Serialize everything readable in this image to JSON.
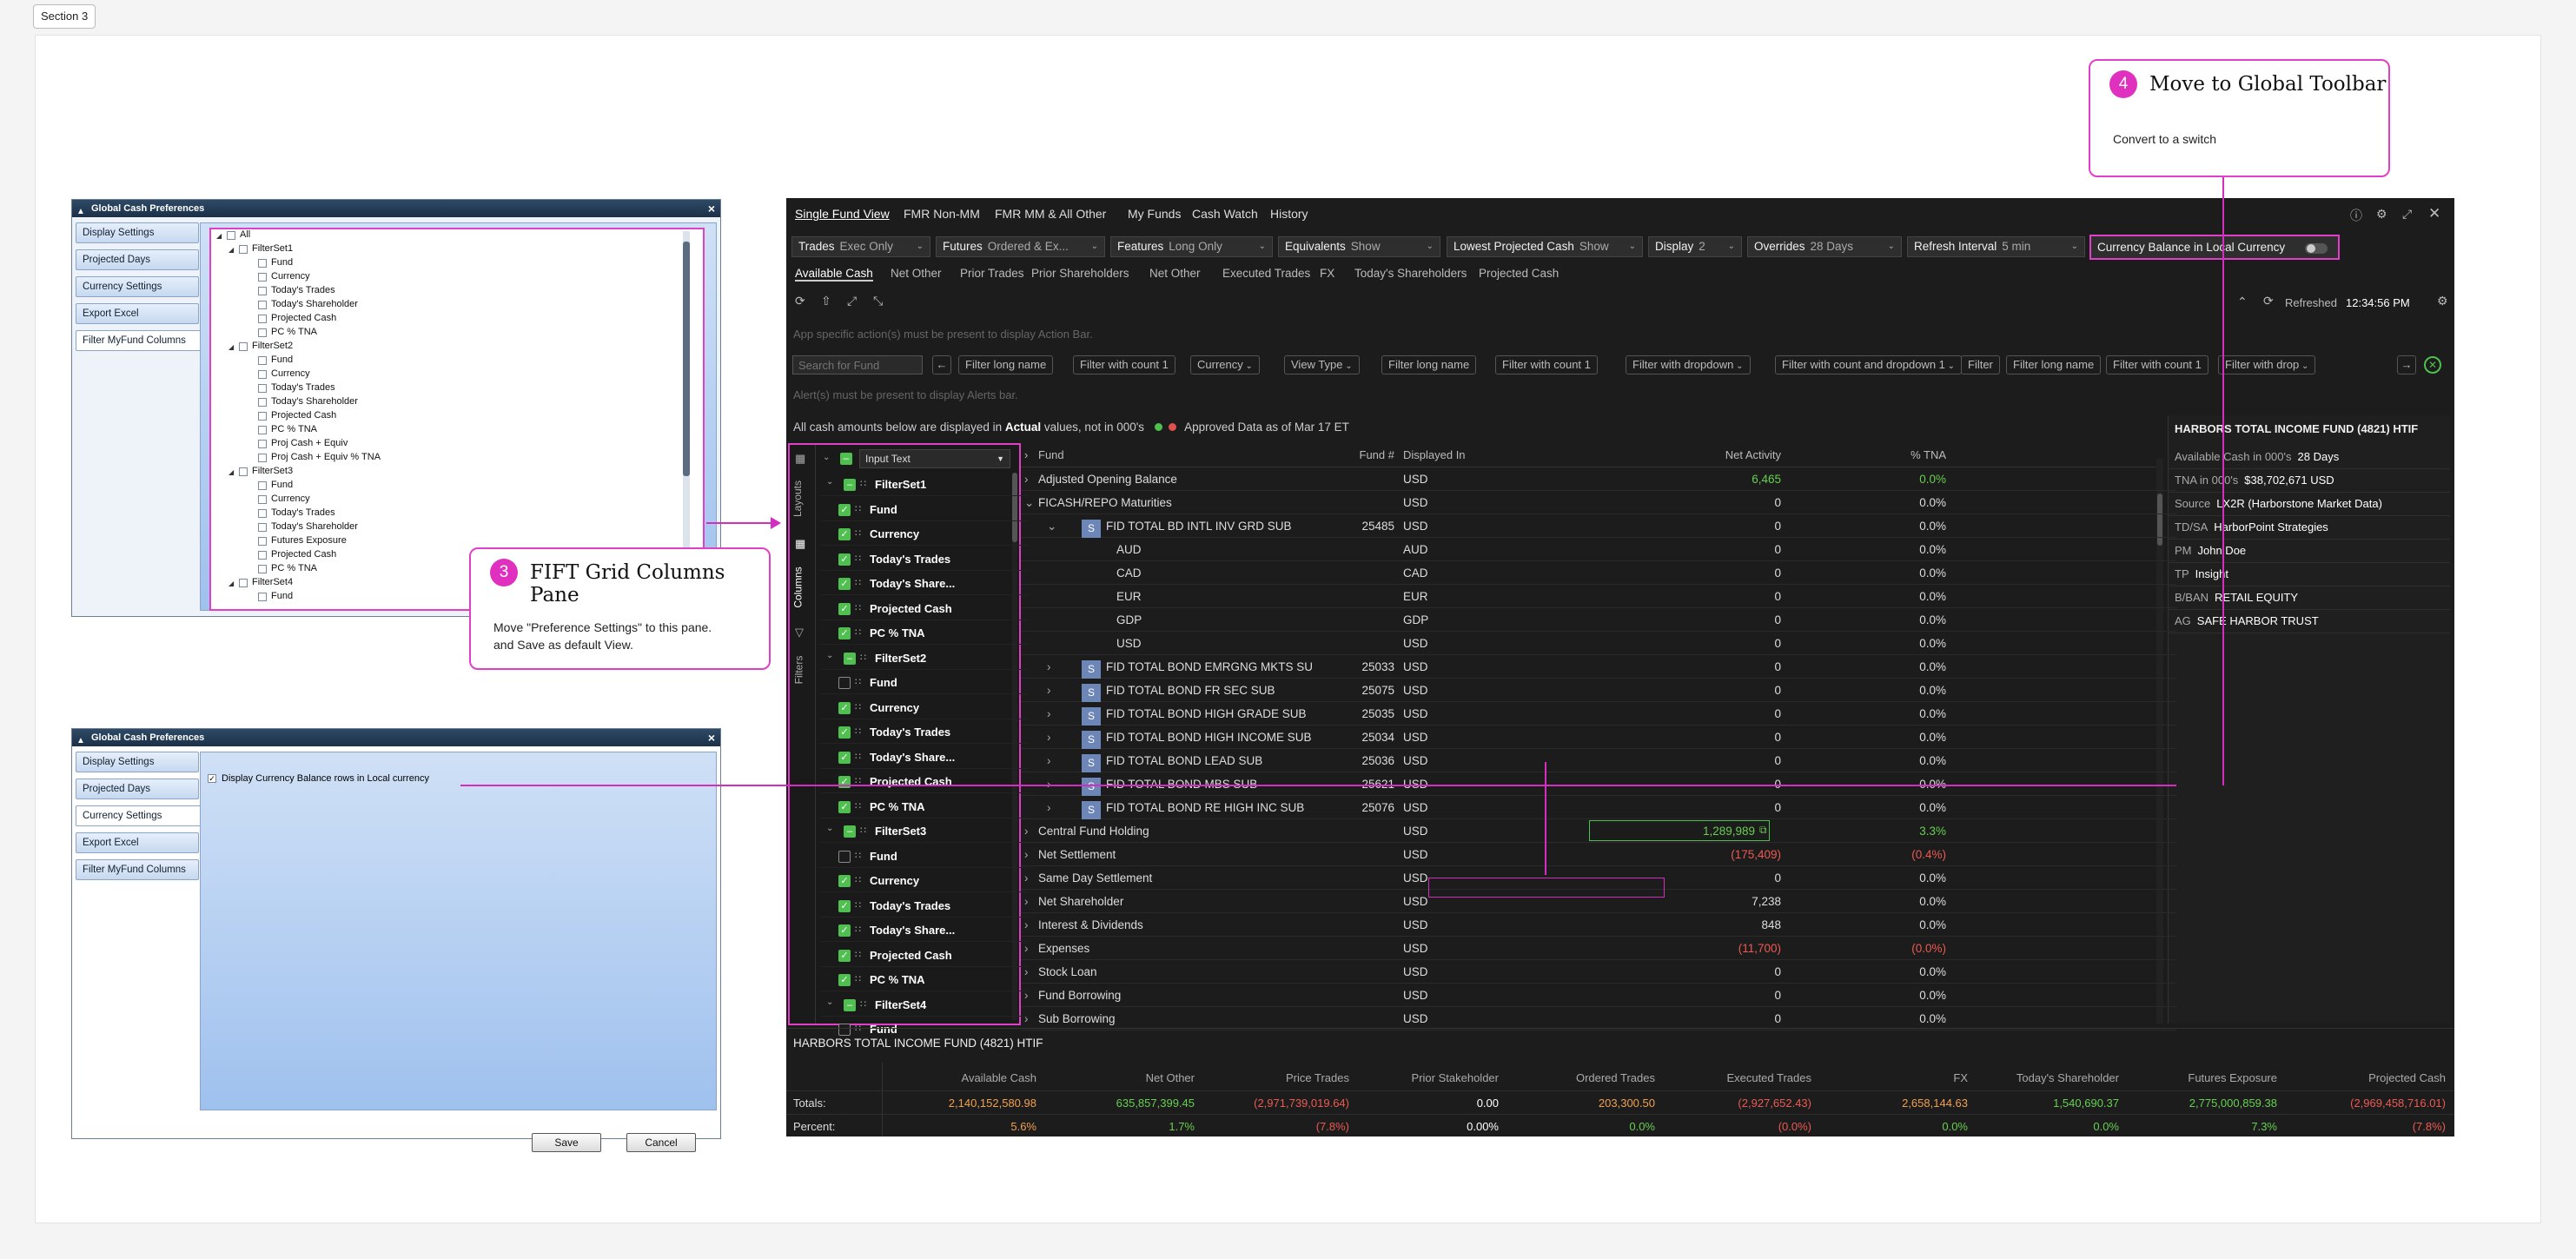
{
  "section_tag": "Section 3",
  "callouts": {
    "c3": {
      "num": "3",
      "title": "FIFT Grid Columns Pane",
      "desc": "Move \"Preference Settings\" to this pane. and Save as default View."
    },
    "c4": {
      "num": "4",
      "title": "Move to Global Toolbar",
      "desc": "Convert to a switch"
    }
  },
  "dialog1": {
    "title": "Global Cash Preferences",
    "nav": [
      "Display Settings",
      "Projected Days",
      "Currency Settings",
      "Export Excel",
      "Filter MyFund Columns"
    ],
    "tree": {
      "root": "All",
      "sets": [
        {
          "name": "FilterSet1",
          "items": [
            "Fund",
            "Currency",
            "Today's Trades",
            "Today's Shareholder",
            "Projected Cash",
            "PC % TNA"
          ]
        },
        {
          "name": "FilterSet2",
          "items": [
            "Fund",
            "Currency",
            "Today's Trades",
            "Today's Shareholder",
            "Projected Cash",
            "PC % TNA",
            "Proj Cash + Equiv",
            "Proj Cash + Equiv % TNA"
          ]
        },
        {
          "name": "FilterSet3",
          "items": [
            "Fund",
            "Currency",
            "Today's Trades",
            "Today's Shareholder",
            "Futures Exposure",
            "Projected Cash",
            "PC % TNA"
          ]
        },
        {
          "name": "FilterSet4",
          "items": [
            "Fund"
          ]
        }
      ]
    }
  },
  "dialog2": {
    "title": "Global Cash Preferences",
    "nav": [
      "Display Settings",
      "Projected Days",
      "Currency Settings",
      "Export Excel",
      "Filter MyFund Columns"
    ],
    "checkbox_label": "Display Currency Balance rows in Local currency",
    "save": "Save",
    "cancel": "Cancel"
  },
  "app": {
    "top_tabs": [
      "Single Fund View",
      "FMR Non-MM",
      "FMR MM & All Other",
      "My Funds",
      "Cash Watch",
      "History"
    ],
    "toolbar": [
      {
        "label": "Trades",
        "value": "Exec Only"
      },
      {
        "label": "Futures",
        "value": "Ordered & Ex..."
      },
      {
        "label": "Features",
        "value": "Long Only"
      },
      {
        "label": "Equivalents",
        "value": "Show"
      },
      {
        "label": "Lowest Projected Cash",
        "value": "Show"
      },
      {
        "label": "Display",
        "value": "2"
      },
      {
        "label": "Overrides",
        "value": "28 Days"
      },
      {
        "label": "Refresh Interval",
        "value": "5 min"
      }
    ],
    "currency_switch": "Currency Balance in Local Currency",
    "sub_tabs": [
      "Available Cash",
      "Net Other",
      "Prior Trades",
      "Prior Shareholders",
      "Net Other",
      "Executed Trades",
      "FX",
      "Today's Shareholders",
      "Projected Cash"
    ],
    "refreshed_label": "Refreshed",
    "refreshed_time": "12:34:56 PM",
    "action_bar": "App specific action(s) must be present to display Action Bar.",
    "search_placeholder": "Search for Fund",
    "filters": [
      "Filter long name",
      "Filter with count  1",
      "Currency",
      "View Type",
      "Filter long name",
      "Filter with count  1",
      "Filter with dropdown",
      "Filter with count and dropdown  1",
      "Filter",
      "Filter long name",
      "Filter with count  1",
      "Filter with drop"
    ],
    "alerts_bar": "Alert(s) must be present to display Alerts bar.",
    "info_pre": "All cash amounts below are displayed in ",
    "info_bold": "Actual",
    "info_post": " values, not in 000's",
    "approved": "Approved Data as of Mar 17 ET",
    "side_tabs": [
      "Layouts",
      "Columns",
      "Filters"
    ],
    "columns_input": "Input Text",
    "column_rows": [
      {
        "t": "set",
        "label": "FilterSet1",
        "state": "part",
        "open": true
      },
      {
        "t": "item",
        "label": "Fund",
        "on": true
      },
      {
        "t": "item",
        "label": "Currency",
        "on": true
      },
      {
        "t": "item",
        "label": "Today's Trades",
        "on": true
      },
      {
        "t": "item",
        "label": "Today's Share...",
        "on": true
      },
      {
        "t": "item",
        "label": "Projected Cash",
        "on": true
      },
      {
        "t": "item",
        "label": "PC % TNA",
        "on": true
      },
      {
        "t": "set",
        "label": "FilterSet2",
        "state": "part",
        "open": true
      },
      {
        "t": "item",
        "label": "Fund",
        "on": false
      },
      {
        "t": "item",
        "label": "Currency",
        "on": true
      },
      {
        "t": "item",
        "label": "Today's Trades",
        "on": true
      },
      {
        "t": "item",
        "label": "Today's Share...",
        "on": true
      },
      {
        "t": "item",
        "label": "Projected Cash",
        "on": true
      },
      {
        "t": "item",
        "label": "PC % TNA",
        "on": true
      },
      {
        "t": "set",
        "label": "FilterSet3",
        "state": "part",
        "open": true
      },
      {
        "t": "item",
        "label": "Fund",
        "on": false
      },
      {
        "t": "item",
        "label": "Currency",
        "on": true
      },
      {
        "t": "item",
        "label": "Today's Trades",
        "on": true
      },
      {
        "t": "item",
        "label": "Today's Share...",
        "on": true
      },
      {
        "t": "item",
        "label": "Projected Cash",
        "on": true
      },
      {
        "t": "item",
        "label": "PC % TNA",
        "on": true
      },
      {
        "t": "set",
        "label": "FilterSet4",
        "state": "part",
        "open": true
      },
      {
        "t": "item",
        "label": "Fund",
        "on": false
      }
    ],
    "grid_headers": {
      "fund": "Fund",
      "fundno": "Fund #",
      "disp": "Displayed In",
      "net": "Net Activity",
      "tna": "% TNA"
    },
    "grid_rows": [
      {
        "lvl": 0,
        "exp": "r",
        "fund": "Adjusted Opening Balance",
        "no": "",
        "disp": "USD",
        "net": "6,465",
        "tna": "0.0%",
        "nc": "green",
        "tc": "green"
      },
      {
        "lvl": 0,
        "exp": "d",
        "fund": "FICASH/REPO Maturities",
        "no": "",
        "disp": "USD",
        "net": "0",
        "tna": "0.0%"
      },
      {
        "lvl": 1,
        "exp": "d",
        "s": true,
        "fund": "FID TOTAL BD INTL INV GRD SUB",
        "no": "25485",
        "disp": "USD",
        "net": "0",
        "tna": "0.0%"
      },
      {
        "lvl": 2,
        "fund": "AUD",
        "no": "",
        "disp": "AUD",
        "net": "0",
        "tna": "0.0%"
      },
      {
        "lvl": 2,
        "fund": "CAD",
        "no": "",
        "disp": "CAD",
        "net": "0",
        "tna": "0.0%"
      },
      {
        "lvl": 2,
        "fund": "EUR",
        "no": "",
        "disp": "EUR",
        "net": "0",
        "tna": "0.0%"
      },
      {
        "lvl": 2,
        "fund": "GDP",
        "no": "",
        "disp": "GDP",
        "net": "0",
        "tna": "0.0%"
      },
      {
        "lvl": 2,
        "fund": "USD",
        "no": "",
        "disp": "USD",
        "net": "0",
        "tna": "0.0%"
      },
      {
        "lvl": 1,
        "exp": "r",
        "s": true,
        "fund": "FID TOTAL BOND EMRGNG MKTS SU",
        "no": "25033",
        "disp": "USD",
        "net": "0",
        "tna": "0.0%"
      },
      {
        "lvl": 1,
        "exp": "r",
        "s": true,
        "fund": "FID TOTAL BOND FR SEC SUB",
        "no": "25075",
        "disp": "USD",
        "net": "0",
        "tna": "0.0%"
      },
      {
        "lvl": 1,
        "exp": "r",
        "s": true,
        "fund": "FID TOTAL BOND HIGH GRADE SUB",
        "no": "25035",
        "disp": "USD",
        "net": "0",
        "tna": "0.0%"
      },
      {
        "lvl": 1,
        "exp": "r",
        "s": true,
        "fund": "FID TOTAL BOND HIGH INCOME SUB",
        "no": "25034",
        "disp": "USD",
        "net": "0",
        "tna": "0.0%"
      },
      {
        "lvl": 1,
        "exp": "r",
        "s": true,
        "fund": "FID TOTAL BOND LEAD SUB",
        "no": "25036",
        "disp": "USD",
        "net": "0",
        "tna": "0.0%"
      },
      {
        "lvl": 1,
        "exp": "r",
        "s": true,
        "fund": "FID TOTAL BOND MBS SUB",
        "no": "25621",
        "disp": "USD",
        "net": "0",
        "tna": "0.0%"
      },
      {
        "lvl": 1,
        "exp": "r",
        "s": true,
        "fund": "FID TOTAL BOND RE HIGH INC SUB",
        "no": "25076",
        "disp": "USD",
        "net": "0",
        "tna": "0.0%"
      },
      {
        "lvl": 0,
        "exp": "r",
        "fund": "Central Fund Holding",
        "no": "",
        "disp": "USD",
        "net": "1,289,989",
        "tna": "3.3%",
        "nc": "green",
        "tc": "green",
        "box": true
      },
      {
        "lvl": 0,
        "exp": "r",
        "fund": "Net Settlement",
        "no": "",
        "disp": "USD",
        "net": "(175,409)",
        "tna": "(0.4%)",
        "nc": "red",
        "tc": "red"
      },
      {
        "lvl": 0,
        "exp": "r",
        "fund": "Same Day Settlement",
        "no": "",
        "disp": "USD",
        "net": "0",
        "tna": "0.0%"
      },
      {
        "lvl": 0,
        "exp": "r",
        "fund": "Net Shareholder",
        "no": "",
        "disp": "USD",
        "net": "7,238",
        "tna": "0.0%"
      },
      {
        "lvl": 0,
        "exp": "r",
        "fund": "Interest & Dividends",
        "no": "",
        "disp": "USD",
        "net": "848",
        "tna": "0.0%"
      },
      {
        "lvl": 0,
        "exp": "r",
        "fund": "Expenses",
        "no": "",
        "disp": "USD",
        "net": "(11,700)",
        "tna": "(0.0%)",
        "nc": "red",
        "tc": "red"
      },
      {
        "lvl": 0,
        "exp": "r",
        "fund": "Stock Loan",
        "no": "",
        "disp": "USD",
        "net": "0",
        "tna": "0.0%"
      },
      {
        "lvl": 0,
        "exp": "r",
        "fund": "Fund Borrowing",
        "no": "",
        "disp": "USD",
        "net": "0",
        "tna": "0.0%"
      },
      {
        "lvl": 0,
        "exp": "r",
        "fund": "Sub Borrowing",
        "no": "",
        "disp": "USD",
        "net": "0",
        "tna": "0.0%"
      }
    ],
    "side_panel": {
      "title": "HARBORS TOTAL INCOME FUND (4821) HTIF",
      "rows": [
        {
          "label": "Available Cash in 000's",
          "value": "28 Days"
        },
        {
          "label": "TNA in 000's",
          "value": "$38,702,671 USD"
        },
        {
          "label": "Source",
          "value": "LX2R (Harborstone Market Data)"
        },
        {
          "label": "TD/SA",
          "value": "HarborPoint Strategies"
        },
        {
          "label": "PM",
          "value": "John Doe"
        },
        {
          "label": "TP",
          "value": "Insight"
        },
        {
          "label": "B/BAN",
          "value": "RETAIL EQUITY"
        },
        {
          "label": "AG",
          "value": "SAFE HARBOR TRUST"
        }
      ]
    },
    "footer": {
      "title": "HARBORS TOTAL INCOME FUND (4821) HTIF",
      "headers": [
        "Available Cash",
        "Net Other",
        "Price Trades",
        "Prior Stakeholder",
        "Ordered Trades",
        "Executed Trades",
        "FX",
        "Today's Shareholder",
        "Futures Exposure",
        "Projected Cash"
      ],
      "totals_label": "Totals:",
      "percent_label": "Percent:",
      "totals": [
        "2,140,152,580.98",
        "635,857,399.45",
        "(2,971,739,019.64)",
        "0.00",
        "203,300.50",
        "(2,927,652.43)",
        "2,658,144.63",
        "1,540,690.37",
        "2,775,000,859.38",
        "(2,969,458,716.01)"
      ],
      "totals_colors": [
        "orange",
        "green",
        "red",
        "white",
        "orange",
        "red",
        "orange",
        "green",
        "green",
        "red"
      ],
      "percent": [
        "5.6%",
        "1.7%",
        "(7.8%)",
        "0.00%",
        "0.0%",
        "(0.0%)",
        "0.0%",
        "0.0%",
        "7.3%",
        "(7.8%)"
      ],
      "percent_colors": [
        "orange",
        "green",
        "red",
        "white",
        "green",
        "red",
        "green",
        "green",
        "green",
        "red"
      ]
    }
  },
  "colors": {
    "accent": "#e040c8",
    "green": "#67cf51",
    "red": "#ec5a52",
    "orange": "#f0a050"
  }
}
